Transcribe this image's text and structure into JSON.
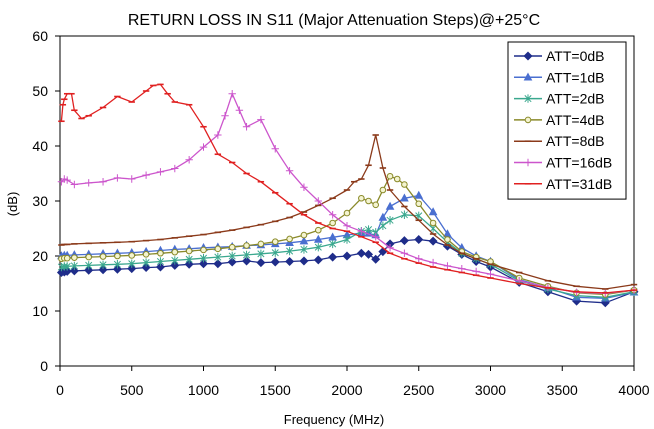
{
  "chart_data": {
    "type": "line",
    "title": "RETURN LOSS IN S11 (Major Attenuation Steps)@+25°C",
    "xlabel": "Frequency (MHz)",
    "ylabel": "(dB)",
    "xlim": [
      0,
      4000
    ],
    "ylim": [
      0,
      60
    ],
    "xticks": [
      0,
      500,
      1000,
      1500,
      2000,
      2500,
      3000,
      3500,
      4000
    ],
    "yticks": [
      0,
      10,
      20,
      30,
      40,
      50,
      60
    ],
    "grid": false,
    "legend_position": "top-right",
    "series": [
      {
        "name": "ATT=0dB",
        "color": "#1f2d8a",
        "marker": "diamond",
        "x": [
          10,
          30,
          50,
          100,
          200,
          300,
          400,
          500,
          600,
          700,
          800,
          900,
          1000,
          1100,
          1200,
          1300,
          1400,
          1500,
          1600,
          1700,
          1800,
          1900,
          2000,
          2100,
          2150,
          2200,
          2250,
          2300,
          2400,
          2500,
          2600,
          2700,
          2800,
          2900,
          3000,
          3200,
          3400,
          3600,
          3800,
          4000
        ],
        "y": [
          17.0,
          17.1,
          17.2,
          17.3,
          17.4,
          17.5,
          17.6,
          17.7,
          17.9,
          18.0,
          18.3,
          18.5,
          18.6,
          18.6,
          18.9,
          19.1,
          18.8,
          18.9,
          19.0,
          19.1,
          19.3,
          19.8,
          20.0,
          20.5,
          20.3,
          19.4,
          20.8,
          22.2,
          22.8,
          23.0,
          22.7,
          21.8,
          20.3,
          19.0,
          18.0,
          15.2,
          13.5,
          11.8,
          11.5,
          13.5
        ]
      },
      {
        "name": "ATT=1dB",
        "color": "#4a6fd0",
        "marker": "triangle",
        "x": [
          10,
          30,
          50,
          100,
          200,
          300,
          400,
          500,
          600,
          700,
          800,
          900,
          1000,
          1100,
          1200,
          1300,
          1400,
          1500,
          1600,
          1700,
          1800,
          1900,
          2000,
          2100,
          2150,
          2200,
          2250,
          2300,
          2400,
          2500,
          2600,
          2700,
          2800,
          2900,
          3000,
          3200,
          3400,
          3600,
          3800,
          4000
        ],
        "y": [
          20.0,
          20.1,
          20.1,
          20.2,
          20.3,
          20.4,
          20.5,
          20.6,
          20.8,
          21.0,
          21.2,
          21.3,
          21.5,
          21.6,
          21.7,
          21.9,
          22.0,
          22.2,
          22.4,
          22.7,
          23.0,
          23.4,
          23.8,
          24.2,
          24.1,
          23.8,
          27.0,
          29.0,
          30.5,
          31.0,
          28.0,
          24.0,
          21.5,
          20.0,
          19.0,
          15.7,
          14.2,
          12.5,
          12.3,
          13.4
        ]
      },
      {
        "name": "ATT=2dB",
        "color": "#3aa88e",
        "marker": "star",
        "x": [
          10,
          30,
          50,
          100,
          200,
          300,
          400,
          500,
          600,
          700,
          800,
          900,
          1000,
          1100,
          1200,
          1300,
          1400,
          1500,
          1600,
          1700,
          1800,
          1900,
          2000,
          2100,
          2150,
          2200,
          2250,
          2300,
          2400,
          2500,
          2600,
          2700,
          2800,
          2900,
          3000,
          3200,
          3400,
          3600,
          3800,
          4000
        ],
        "y": [
          18.0,
          18.1,
          18.1,
          18.2,
          18.3,
          18.4,
          18.5,
          18.6,
          18.8,
          19.0,
          19.2,
          19.4,
          19.6,
          19.8,
          20.0,
          20.2,
          20.4,
          20.6,
          20.9,
          21.2,
          21.6,
          22.2,
          23.0,
          24.5,
          24.8,
          24.3,
          25.5,
          26.5,
          27.5,
          27.3,
          25.0,
          22.5,
          20.5,
          19.5,
          18.5,
          15.5,
          14.0,
          12.8,
          12.5,
          13.5
        ]
      },
      {
        "name": "ATT=4dB",
        "color": "#8a8a2a",
        "marker": "circle",
        "x": [
          10,
          30,
          50,
          100,
          200,
          300,
          400,
          500,
          600,
          700,
          800,
          900,
          1000,
          1100,
          1200,
          1300,
          1400,
          1500,
          1600,
          1700,
          1800,
          1900,
          2000,
          2100,
          2150,
          2200,
          2250,
          2300,
          2350,
          2400,
          2500,
          2600,
          2700,
          2800,
          2900,
          3000,
          3200,
          3400,
          3600,
          3800,
          4000
        ],
        "y": [
          19.5,
          19.6,
          19.6,
          19.7,
          19.8,
          19.9,
          20.0,
          20.1,
          20.3,
          20.5,
          20.7,
          20.9,
          21.1,
          21.3,
          21.6,
          21.9,
          22.2,
          22.6,
          23.1,
          23.8,
          24.7,
          26.0,
          27.8,
          30.5,
          30.0,
          29.3,
          32.0,
          34.5,
          34.0,
          33.0,
          29.5,
          26.0,
          23.0,
          20.8,
          19.8,
          19.0,
          16.0,
          14.5,
          13.3,
          13.0,
          13.8
        ]
      },
      {
        "name": "ATT=8dB",
        "color": "#8b3a1a",
        "marker": "dash",
        "x": [
          10,
          30,
          50,
          100,
          200,
          300,
          400,
          500,
          600,
          700,
          800,
          900,
          1000,
          1100,
          1200,
          1300,
          1400,
          1500,
          1600,
          1700,
          1800,
          1900,
          2000,
          2050,
          2100,
          2150,
          2200,
          2250,
          2300,
          2400,
          2500,
          2600,
          2700,
          2800,
          2900,
          3000,
          3200,
          3400,
          3600,
          3800,
          4000
        ],
        "y": [
          22.0,
          22.1,
          22.1,
          22.2,
          22.3,
          22.4,
          22.5,
          22.6,
          22.8,
          23.0,
          23.3,
          23.6,
          23.9,
          24.3,
          24.7,
          25.2,
          25.7,
          26.3,
          27.0,
          28.0,
          29.2,
          30.5,
          32.0,
          33.5,
          34.0,
          36.5,
          42.0,
          36.0,
          32.0,
          29.0,
          26.5,
          24.0,
          22.0,
          20.5,
          19.5,
          18.5,
          17.0,
          15.5,
          14.5,
          14.0,
          14.8
        ]
      },
      {
        "name": "ATT=16dB",
        "color": "#cc55cc",
        "marker": "plus",
        "x": [
          10,
          30,
          50,
          100,
          200,
          300,
          400,
          500,
          600,
          700,
          800,
          900,
          1000,
          1100,
          1150,
          1200,
          1250,
          1300,
          1400,
          1500,
          1600,
          1700,
          1800,
          1900,
          2000,
          2100,
          2200,
          2300,
          2400,
          2500,
          2600,
          2700,
          2800,
          2900,
          3000,
          3200,
          3400,
          3600,
          3800,
          4000
        ],
        "y": [
          33.5,
          34.0,
          33.8,
          33.0,
          33.3,
          33.5,
          34.2,
          34.0,
          34.7,
          35.3,
          35.9,
          37.5,
          39.8,
          42.0,
          45.5,
          49.5,
          46.5,
          43.5,
          44.8,
          39.5,
          35.5,
          32.5,
          30.0,
          27.5,
          25.5,
          24.5,
          23.5,
          21.5,
          20.5,
          19.5,
          18.8,
          18.2,
          17.7,
          17.2,
          16.7,
          15.5,
          14.3,
          13.4,
          13.2,
          13.8
        ]
      },
      {
        "name": "ATT=31dB",
        "color": "#e02020",
        "marker": "dash",
        "x": [
          10,
          20,
          30,
          50,
          80,
          100,
          150,
          200,
          300,
          400,
          500,
          600,
          650,
          700,
          750,
          800,
          900,
          1000,
          1100,
          1200,
          1300,
          1400,
          1500,
          1600,
          1700,
          1800,
          1900,
          2000,
          2100,
          2200,
          2300,
          2400,
          2500,
          2600,
          2700,
          2800,
          2900,
          3000,
          3200,
          3400,
          3600,
          3800,
          4000
        ],
        "y": [
          44.5,
          47.5,
          48.5,
          49.5,
          49.5,
          46.5,
          45.0,
          45.5,
          47.0,
          49.0,
          48.0,
          50.0,
          51.0,
          51.2,
          49.5,
          48.0,
          47.5,
          43.5,
          38.5,
          37.0,
          35.0,
          33.5,
          31.5,
          29.5,
          27.5,
          26.0,
          25.0,
          24.5,
          23.5,
          22.5,
          20.5,
          19.5,
          18.7,
          18.0,
          17.5,
          17.0,
          16.5,
          16.0,
          15.0,
          14.2,
          13.5,
          13.3,
          13.8
        ]
      }
    ]
  }
}
